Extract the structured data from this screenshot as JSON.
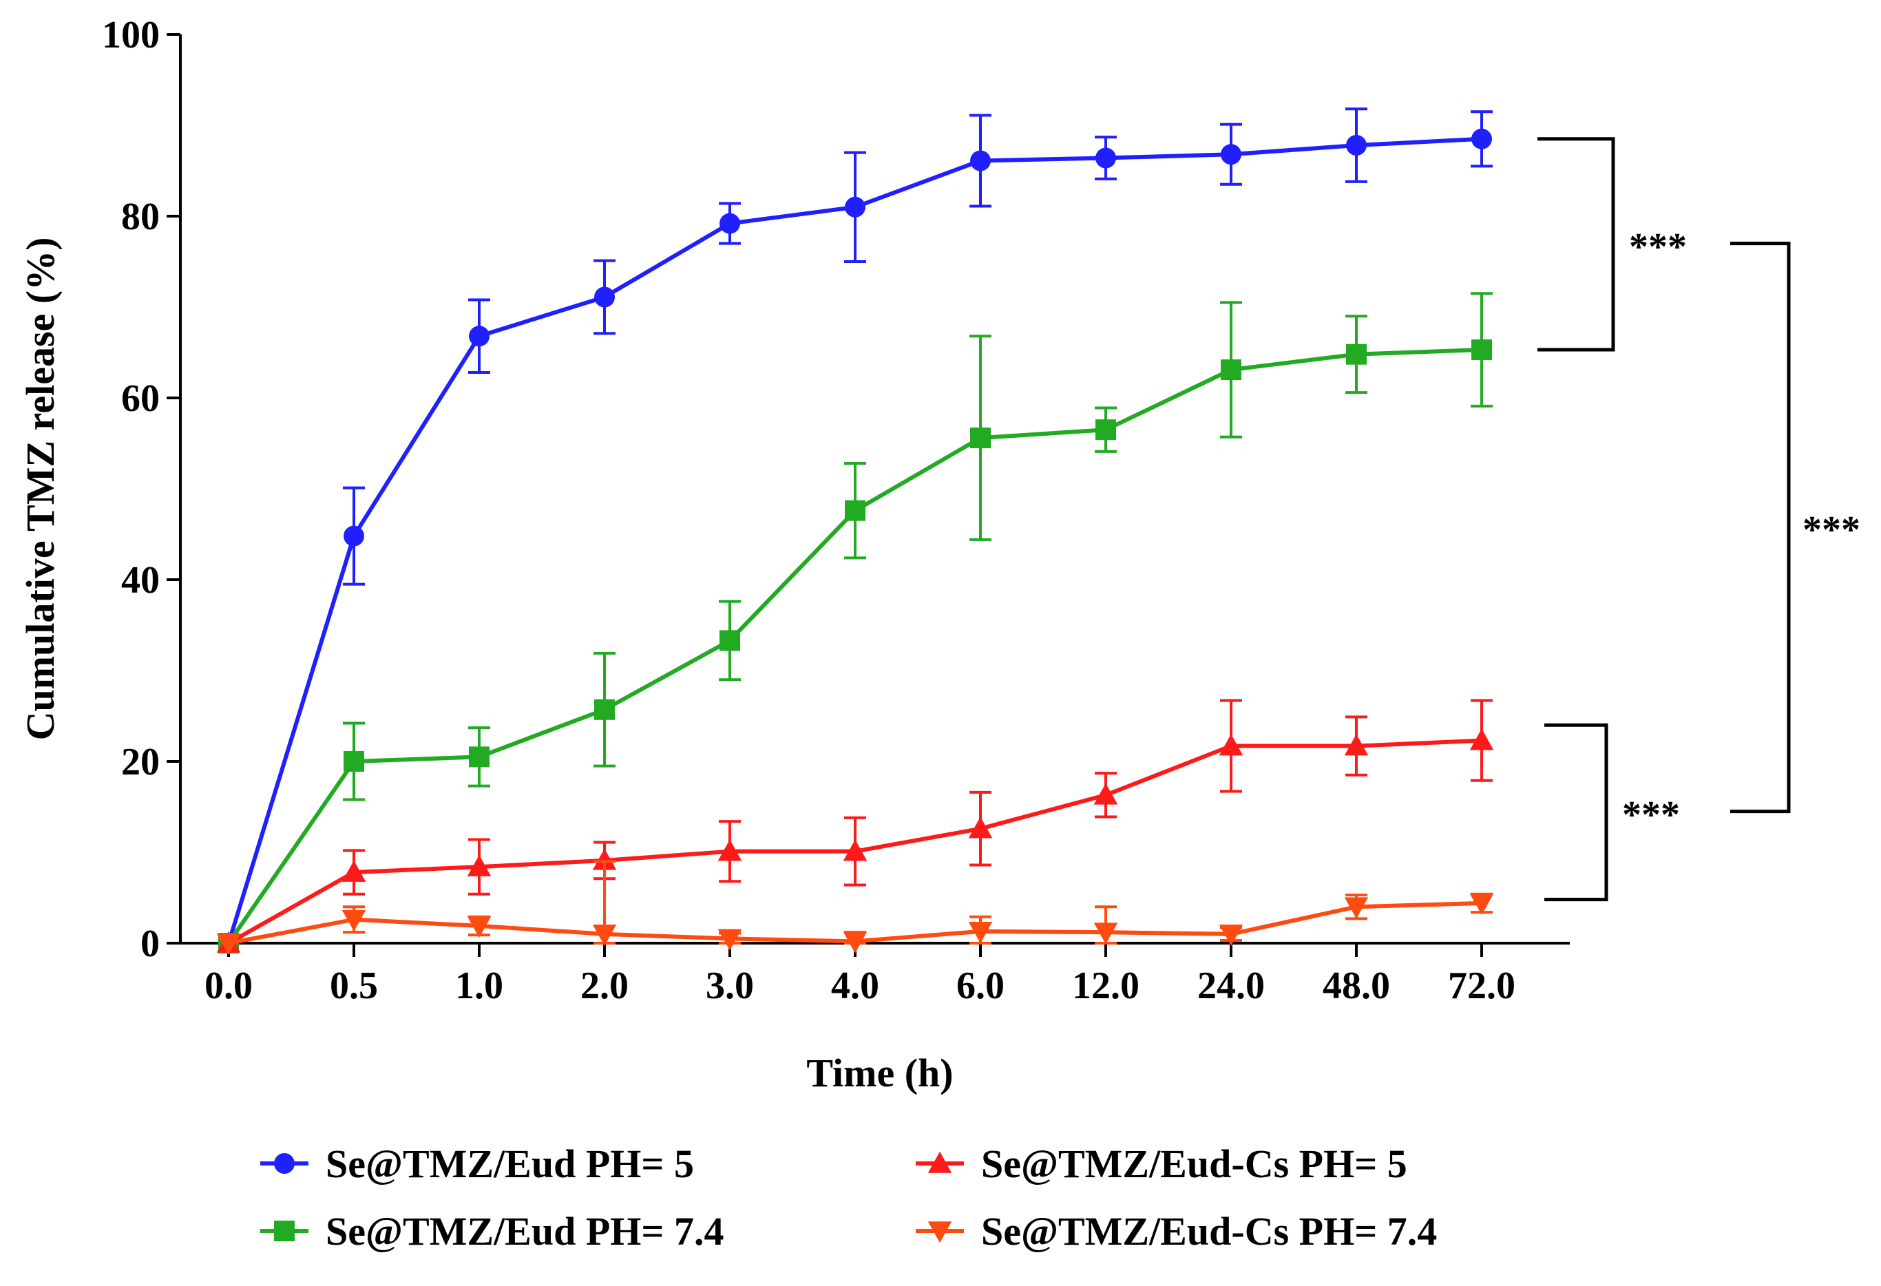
{
  "chart_data": {
    "type": "line",
    "title": "",
    "xlabel": "Time (h)",
    "ylabel": "Cumulative TMZ release (%)",
    "categories": [
      "0.0",
      "0.5",
      "1.0",
      "2.0",
      "3.0",
      "4.0",
      "6.0",
      "12.0",
      "24.0",
      "48.0",
      "72.0"
    ],
    "y_ticks": [
      "0",
      "20",
      "40",
      "60",
      "80",
      "100"
    ],
    "ylim": [
      0,
      100
    ],
    "grid": false,
    "legend_position": "bottom",
    "series": [
      {
        "name": "Se@TMZ/Eud PH= 5",
        "color": "#1f1fff",
        "marker": "circle",
        "values": [
          0,
          44.8,
          66.8,
          71.1,
          79.2,
          81.0,
          86.1,
          86.4,
          86.8,
          87.8,
          88.5
        ],
        "errors": [
          0,
          5.3,
          4.0,
          4.0,
          2.2,
          6.0,
          5.0,
          2.3,
          3.3,
          4.0,
          3.0
        ]
      },
      {
        "name": "Se@TMZ/Eud PH= 7.4",
        "color": "#22aa22",
        "marker": "square",
        "values": [
          0,
          20.0,
          20.5,
          25.7,
          33.3,
          47.6,
          55.6,
          56.5,
          63.1,
          64.8,
          65.3
        ],
        "errors": [
          0,
          4.2,
          3.2,
          6.2,
          4.3,
          5.2,
          11.2,
          2.4,
          7.4,
          4.2,
          6.2
        ]
      },
      {
        "name": "Se@TMZ/Eud-Cs PH= 5",
        "color": "#ff1a1a",
        "marker": "triangle-up",
        "values": [
          0,
          7.8,
          8.4,
          9.1,
          10.1,
          10.1,
          12.6,
          16.3,
          21.7,
          21.7,
          22.3
        ],
        "errors": [
          0,
          2.4,
          3.0,
          2.0,
          3.3,
          3.7,
          4.0,
          2.4,
          5.0,
          3.2,
          4.4
        ]
      },
      {
        "name": "Se@TMZ/Eud-Cs PH= 7.4",
        "color": "#ff4a10",
        "marker": "triangle-down",
        "values": [
          0,
          2.6,
          1.9,
          1.0,
          0.5,
          0.2,
          1.3,
          1.2,
          1.0,
          4.0,
          4.4
        ],
        "errors": [
          0,
          1.4,
          1.0,
          8.0,
          0.6,
          1.0,
          1.6,
          2.8,
          0.7,
          1.3,
          1.0
        ]
      }
    ],
    "significance": [
      {
        "label": "***",
        "between": [
          "Se@TMZ/Eud PH= 5",
          "Se@TMZ/Eud PH= 7.4"
        ],
        "y_from": 88.5,
        "y_to": 65.3
      },
      {
        "label": "***",
        "between": [
          "Se@TMZ/Eud-Cs PH= 5",
          "Se@TMZ/Eud-Cs PH= 7.4"
        ],
        "y_from": 24.0,
        "y_to": 4.8
      },
      {
        "label": "***",
        "between": [
          "Se@TMZ/Eud PH= 7.4",
          "Se@TMZ/Eud-Cs PH= 5"
        ],
        "y_from": 77.0,
        "y_to": 14.5
      }
    ]
  }
}
